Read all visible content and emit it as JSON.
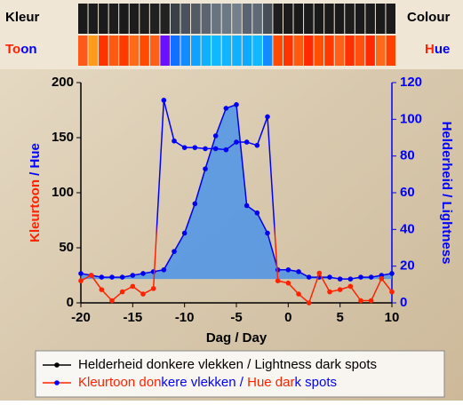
{
  "chart_data": {
    "type": "line",
    "strip_labels": {
      "colour_left": "Kleur",
      "colour_right": "Colour",
      "hue_left": [
        {
          "text": "To",
          "color": "#ff2200"
        },
        {
          "text": "on",
          "color": "#0000ff"
        }
      ],
      "hue_right": [
        {
          "text": "H",
          "color": "#ff2200"
        },
        {
          "text": "ue",
          "color": "#0000ff"
        }
      ]
    },
    "colour_strip": [
      "#1a1a1a",
      "#1c1c1c",
      "#1a1a1a",
      "#1d1d1d",
      "#1a1a1a",
      "#1c1c1c",
      "#1e1e1e",
      "#202020",
      "#222222",
      "#3a4048",
      "#4a5260",
      "#525a66",
      "#5c6470",
      "#687480",
      "#6c7886",
      "#74808c",
      "#5a6470",
      "#606a76",
      "#484e58",
      "#1e1e1e",
      "#1c1c1c",
      "#1a1a1a",
      "#1c1c1c",
      "#1a1a1a",
      "#1b1b1b",
      "#1a1a1a",
      "#1d1d1d",
      "#1a1a1a",
      "#1c1c1c",
      "#1a1a1a",
      "#1b1b1b"
    ],
    "hue_strip": [
      "#ff5a1a",
      "#ff9a1a",
      "#ff3300",
      "#ff5a10",
      "#ff3a00",
      "#ff6a18",
      "#ff4a00",
      "#ff6018",
      "#6a10ff",
      "#1070ff",
      "#108cff",
      "#10a0ff",
      "#10b0ff",
      "#10b8ff",
      "#10b4ff",
      "#10b0ff",
      "#10a8ff",
      "#10b8ff",
      "#108cff",
      "#ff4a00",
      "#ff3300",
      "#ff5a10",
      "#ff2a00",
      "#ff5000",
      "#ff3a00",
      "#ff6018",
      "#ff3000",
      "#ff5010",
      "#ff2a00",
      "#ff6a18",
      "#ff4000"
    ],
    "xlabel": "Dag / Day",
    "ylabel": [
      {
        "text": "Kleurtoon",
        "color": "#ff2200"
      },
      {
        "text": " / Hue",
        "color": "#0000ff"
      }
    ],
    "y2label": "Helderheid / Lightness",
    "x": [
      -20,
      -19,
      -18,
      -17,
      -16,
      -15,
      -14,
      -13,
      -12,
      -11,
      -10,
      -9,
      -8,
      -7,
      -6,
      -5,
      -4,
      -3,
      -2,
      -1,
      0,
      1,
      2,
      3,
      4,
      5,
      6,
      7,
      8,
      9,
      10
    ],
    "xlim": [
      -20,
      10
    ],
    "xticks": [
      -20,
      -15,
      -10,
      -5,
      0,
      5,
      10
    ],
    "ylim": [
      0,
      200
    ],
    "yticks": [
      0,
      50,
      100,
      150,
      200
    ],
    "y2lim": [
      0,
      120
    ],
    "y2ticks": [
      0,
      20,
      40,
      60,
      80,
      100,
      120
    ],
    "series": [
      {
        "name": [
          {
            "text": "Helderheid donkere vlekken  /  Lightness dark spots",
            "color": "#000000"
          }
        ],
        "color": "#0000ee",
        "fill": "#3a8cf0",
        "legend_color": "#000000",
        "axis": "y2",
        "values": [
          16,
          15,
          14,
          14,
          14,
          15,
          16,
          17,
          18,
          28,
          38,
          54,
          73,
          91,
          106,
          108,
          53,
          49,
          38,
          18,
          18,
          17,
          14,
          14,
          14,
          13,
          13,
          14,
          14,
          15,
          16
        ]
      },
      {
        "name": [
          {
            "text": "Kleurtoon don",
            "color": "#ff2200"
          },
          {
            "text": "kere vlekken   /  ",
            "color": "#0000ff"
          },
          {
            "text": "Hue dar",
            "color": "#ff2200"
          },
          {
            "text": "k spots",
            "color": "#0000ff"
          }
        ],
        "color": "#ff2200",
        "high_color": "#0000ff",
        "values": [
          20,
          25,
          12,
          2,
          10,
          15,
          8,
          13,
          184,
          147,
          141,
          141,
          140,
          140,
          139,
          146,
          146,
          143,
          169,
          20,
          18,
          8,
          0,
          27,
          10,
          12,
          15,
          2,
          2,
          22,
          10
        ],
        "point_colors": [
          "#ff2200",
          "#ff2200",
          "#ff2200",
          "#ff2200",
          "#ff2200",
          "#ff2200",
          "#ff2200",
          "#ff2200",
          "#0000ff",
          "#0000ff",
          "#0000ff",
          "#0000ff",
          "#0000ff",
          "#0000ff",
          "#0000ff",
          "#0000ff",
          "#0000ff",
          "#0000ff",
          "#0000ff",
          "#ff2200",
          "#ff2200",
          "#ff2200",
          "#ff2200",
          "#ff2200",
          "#ff2200",
          "#ff2200",
          "#ff2200",
          "#ff2200",
          "#ff2200",
          "#ff2200",
          "#ff2200"
        ]
      }
    ]
  }
}
